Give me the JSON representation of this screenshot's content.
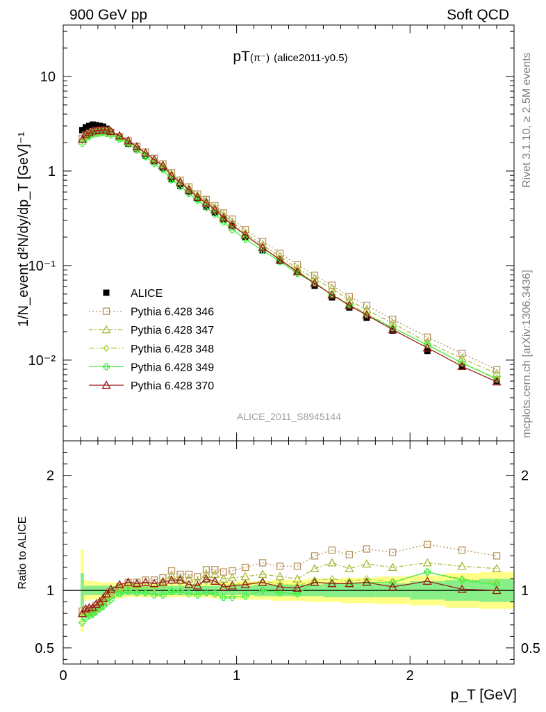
{
  "header": {
    "left": "900 GeV pp",
    "right": "Soft QCD"
  },
  "side_labels": {
    "rivet": "Rivet 3.1.10, ≥ 2.5M events",
    "mcplots": "mcplots.cern.ch [arXiv:1306.3436]"
  },
  "watermark": "ALICE_2011_S8945144",
  "colors": {
    "alice": "#000000",
    "p346": "#b8925e",
    "p347": "#a8b832",
    "p348": "#a8d83c",
    "p349": "#44ee44",
    "p370": "#9a1b1b",
    "band_stat": "#88ee88",
    "band_tot": "#ffff88"
  },
  "chart_data": [
    {
      "type": "line",
      "title": "pT(π⁻) (alice2011-y0.5)",
      "title_main": "pT",
      "title_particle": "(π⁻)",
      "title_tag": "(alice2011-y0.5)",
      "ylabel": "1/N_event d²N/dy/dp_T [GeV]⁻¹",
      "xlabel": "p_T [GeV]",
      "yscale": "log",
      "ylim": [
        0.0014,
        35
      ],
      "xlim": [
        0,
        2.6
      ],
      "yticks": [
        {
          "v": 10,
          "t": "10"
        },
        {
          "v": 1,
          "t": "1"
        },
        {
          "v": 0.1,
          "t": "10⁻¹"
        },
        {
          "v": 0.01,
          "t": "10⁻²"
        }
      ],
      "legend_position": "bottom-left",
      "x": [
        0.11,
        0.13,
        0.15,
        0.17,
        0.19,
        0.21,
        0.23,
        0.25,
        0.275,
        0.325,
        0.375,
        0.425,
        0.475,
        0.525,
        0.575,
        0.625,
        0.675,
        0.725,
        0.775,
        0.825,
        0.875,
        0.925,
        0.975,
        1.05,
        1.15,
        1.25,
        1.35,
        1.45,
        1.55,
        1.65,
        1.75,
        1.9,
        2.1,
        2.3,
        2.5
      ],
      "series": [
        {
          "name": "ALICE",
          "marker": "filled-square",
          "values": [
            2.7,
            2.9,
            3.0,
            3.1,
            3.05,
            3.0,
            2.95,
            2.8,
            2.6,
            2.25,
            1.95,
            1.7,
            1.45,
            1.25,
            1.07,
            0.82,
            0.7,
            0.6,
            0.51,
            0.42,
            0.36,
            0.31,
            0.26,
            0.2,
            0.145,
            0.112,
            0.085,
            0.061,
            0.046,
            0.036,
            0.028,
            0.0205,
            0.0125,
            0.0085,
            0.006
          ]
        },
        {
          "name": "Pythia 6.428 346",
          "marker": "open-square",
          "dash": "2,3",
          "values": [
            2.22,
            2.4,
            2.5,
            2.6,
            2.64,
            2.66,
            2.68,
            2.65,
            2.56,
            2.31,
            2.09,
            1.82,
            1.59,
            1.36,
            1.19,
            0.96,
            0.8,
            0.68,
            0.57,
            0.5,
            0.43,
            0.36,
            0.31,
            0.24,
            0.18,
            0.135,
            0.102,
            0.079,
            0.062,
            0.047,
            0.038,
            0.027,
            0.0175,
            0.0118,
            0.0079
          ]
        },
        {
          "name": "Pythia 6.428 347",
          "marker": "open-triangle",
          "dash": "6,3,2,3",
          "values": [
            2.16,
            2.36,
            2.46,
            2.55,
            2.59,
            2.62,
            2.65,
            2.63,
            2.53,
            2.29,
            2.06,
            1.79,
            1.55,
            1.32,
            1.16,
            0.93,
            0.78,
            0.66,
            0.55,
            0.48,
            0.41,
            0.34,
            0.29,
            0.22,
            0.165,
            0.125,
            0.093,
            0.073,
            0.057,
            0.043,
            0.034,
            0.0245,
            0.0155,
            0.0104,
            0.0072
          ]
        },
        {
          "name": "Pythia 6.428 348",
          "marker": "open-diamond",
          "dash": "8,3,2,3",
          "values": [
            2.1,
            2.28,
            2.39,
            2.49,
            2.53,
            2.56,
            2.59,
            2.58,
            2.48,
            2.24,
            2.0,
            1.73,
            1.49,
            1.27,
            1.11,
            0.89,
            0.75,
            0.63,
            0.53,
            0.45,
            0.39,
            0.32,
            0.27,
            0.205,
            0.155,
            0.117,
            0.088,
            0.066,
            0.05,
            0.039,
            0.031,
            0.022,
            0.0145,
            0.0094,
            0.0064
          ]
        },
        {
          "name": "Pythia 6.428 349",
          "marker": "open-cross",
          "dash": "",
          "values": [
            1.96,
            2.2,
            2.33,
            2.45,
            2.5,
            2.52,
            2.54,
            2.5,
            2.4,
            2.18,
            1.93,
            1.67,
            1.42,
            1.2,
            1.03,
            0.81,
            0.69,
            0.58,
            0.49,
            0.41,
            0.35,
            0.29,
            0.24,
            0.19,
            0.145,
            0.11,
            0.083,
            0.065,
            0.049,
            0.038,
            0.03,
            0.022,
            0.0145,
            0.0093,
            0.0063
          ]
        },
        {
          "name": "Pythia 6.428 370",
          "marker": "open-triangle",
          "dash": "",
          "values": [
            2.16,
            2.45,
            2.55,
            2.65,
            2.68,
            2.71,
            2.73,
            2.71,
            2.63,
            2.36,
            2.09,
            1.81,
            1.55,
            1.32,
            1.14,
            0.89,
            0.76,
            0.63,
            0.53,
            0.46,
            0.39,
            0.32,
            0.27,
            0.21,
            0.155,
            0.115,
            0.086,
            0.065,
            0.049,
            0.038,
            0.03,
            0.021,
            0.0135,
            0.0086,
            0.0059
          ]
        }
      ]
    },
    {
      "type": "line",
      "title": "",
      "ylabel": "Ratio to ALICE",
      "xlabel": "p_T [GeV]",
      "ylim": [
        0.36,
        2.3
      ],
      "xlim": [
        0,
        2.6
      ],
      "yticks": [
        {
          "v": 0.5,
          "t": "0.5"
        },
        {
          "v": 1,
          "t": "1"
        },
        {
          "v": 2,
          "t": "2"
        }
      ],
      "xticks": [
        {
          "v": 0,
          "t": "0"
        },
        {
          "v": 1,
          "t": "1"
        },
        {
          "v": 2,
          "t": "2"
        }
      ],
      "x": [
        0.11,
        0.13,
        0.15,
        0.17,
        0.19,
        0.21,
        0.23,
        0.25,
        0.275,
        0.325,
        0.375,
        0.425,
        0.475,
        0.525,
        0.575,
        0.625,
        0.675,
        0.725,
        0.775,
        0.825,
        0.875,
        0.925,
        0.975,
        1.05,
        1.15,
        1.25,
        1.35,
        1.45,
        1.55,
        1.65,
        1.75,
        1.9,
        2.1,
        2.3,
        2.5
      ],
      "bands": {
        "edges": [
          0.1,
          0.12,
          0.14,
          0.16,
          0.18,
          0.2,
          0.22,
          0.24,
          0.26,
          0.3,
          0.35,
          0.4,
          0.45,
          0.5,
          0.55,
          0.6,
          0.65,
          0.7,
          0.75,
          0.8,
          0.85,
          0.9,
          0.95,
          1.0,
          1.1,
          1.2,
          1.3,
          1.4,
          1.5,
          1.6,
          1.7,
          1.8,
          2.0,
          2.2,
          2.4,
          2.6
        ],
        "total_halfwidth": [
          0.36,
          0.09,
          0.08,
          0.08,
          0.08,
          0.07,
          0.07,
          0.07,
          0.07,
          0.07,
          0.06,
          0.06,
          0.06,
          0.06,
          0.06,
          0.06,
          0.06,
          0.06,
          0.06,
          0.06,
          0.07,
          0.07,
          0.07,
          0.08,
          0.08,
          0.09,
          0.09,
          0.1,
          0.1,
          0.11,
          0.11,
          0.12,
          0.13,
          0.15,
          0.16
        ],
        "stat_halfwidth": [
          0.15,
          0.04,
          0.04,
          0.04,
          0.04,
          0.04,
          0.04,
          0.04,
          0.04,
          0.04,
          0.04,
          0.04,
          0.04,
          0.04,
          0.04,
          0.04,
          0.04,
          0.04,
          0.04,
          0.04,
          0.04,
          0.04,
          0.04,
          0.04,
          0.05,
          0.05,
          0.05,
          0.05,
          0.06,
          0.06,
          0.06,
          0.06,
          0.08,
          0.09,
          0.1
        ]
      },
      "series": [
        {
          "name": "Pythia 6.428 346",
          "values": [
            0.82,
            0.83,
            0.83,
            0.84,
            0.87,
            0.89,
            0.91,
            0.95,
            0.99,
            1.03,
            1.07,
            1.07,
            1.09,
            1.09,
            1.11,
            1.17,
            1.14,
            1.14,
            1.12,
            1.18,
            1.18,
            1.16,
            1.17,
            1.2,
            1.24,
            1.21,
            1.21,
            1.3,
            1.35,
            1.31,
            1.36,
            1.33,
            1.4,
            1.35,
            1.3
          ]
        },
        {
          "name": "Pythia 6.428 347",
          "values": [
            0.8,
            0.81,
            0.82,
            0.82,
            0.85,
            0.87,
            0.9,
            0.94,
            0.97,
            1.02,
            1.06,
            1.05,
            1.07,
            1.06,
            1.08,
            1.13,
            1.11,
            1.1,
            1.08,
            1.14,
            1.14,
            1.1,
            1.11,
            1.12,
            1.14,
            1.12,
            1.1,
            1.19,
            1.24,
            1.19,
            1.23,
            1.2,
            1.24,
            1.21,
            1.19
          ]
        },
        {
          "name": "Pythia 6.428 348",
          "values": [
            0.78,
            0.79,
            0.8,
            0.8,
            0.83,
            0.85,
            0.88,
            0.92,
            0.95,
            1.0,
            1.03,
            1.02,
            1.03,
            1.02,
            1.04,
            1.08,
            1.07,
            1.05,
            1.04,
            1.08,
            1.08,
            1.04,
            1.05,
            1.06,
            1.08,
            1.06,
            1.04,
            1.09,
            1.1,
            1.08,
            1.1,
            1.07,
            1.16,
            1.1,
            1.07
          ]
        },
        {
          "name": "Pythia 6.428 349",
          "values": [
            0.72,
            0.76,
            0.78,
            0.79,
            0.82,
            0.84,
            0.86,
            0.89,
            0.92,
            0.97,
            0.99,
            0.98,
            0.98,
            0.96,
            0.96,
            0.99,
            0.99,
            0.97,
            0.96,
            0.98,
            0.97,
            0.94,
            0.94,
            0.95,
            1.0,
            0.98,
            0.97,
            1.07,
            1.06,
            1.06,
            1.07,
            1.07,
            1.16,
            1.09,
            1.05
          ]
        },
        {
          "name": "Pythia 6.428 370",
          "values": [
            0.8,
            0.84,
            0.85,
            0.85,
            0.88,
            0.9,
            0.93,
            0.97,
            1.01,
            1.05,
            1.07,
            1.06,
            1.07,
            1.06,
            1.07,
            1.09,
            1.09,
            1.05,
            1.04,
            1.1,
            1.08,
            1.03,
            1.04,
            1.05,
            1.07,
            1.03,
            1.02,
            1.07,
            1.06,
            1.06,
            1.07,
            1.03,
            1.08,
            1.01,
            1.0
          ]
        }
      ]
    }
  ]
}
